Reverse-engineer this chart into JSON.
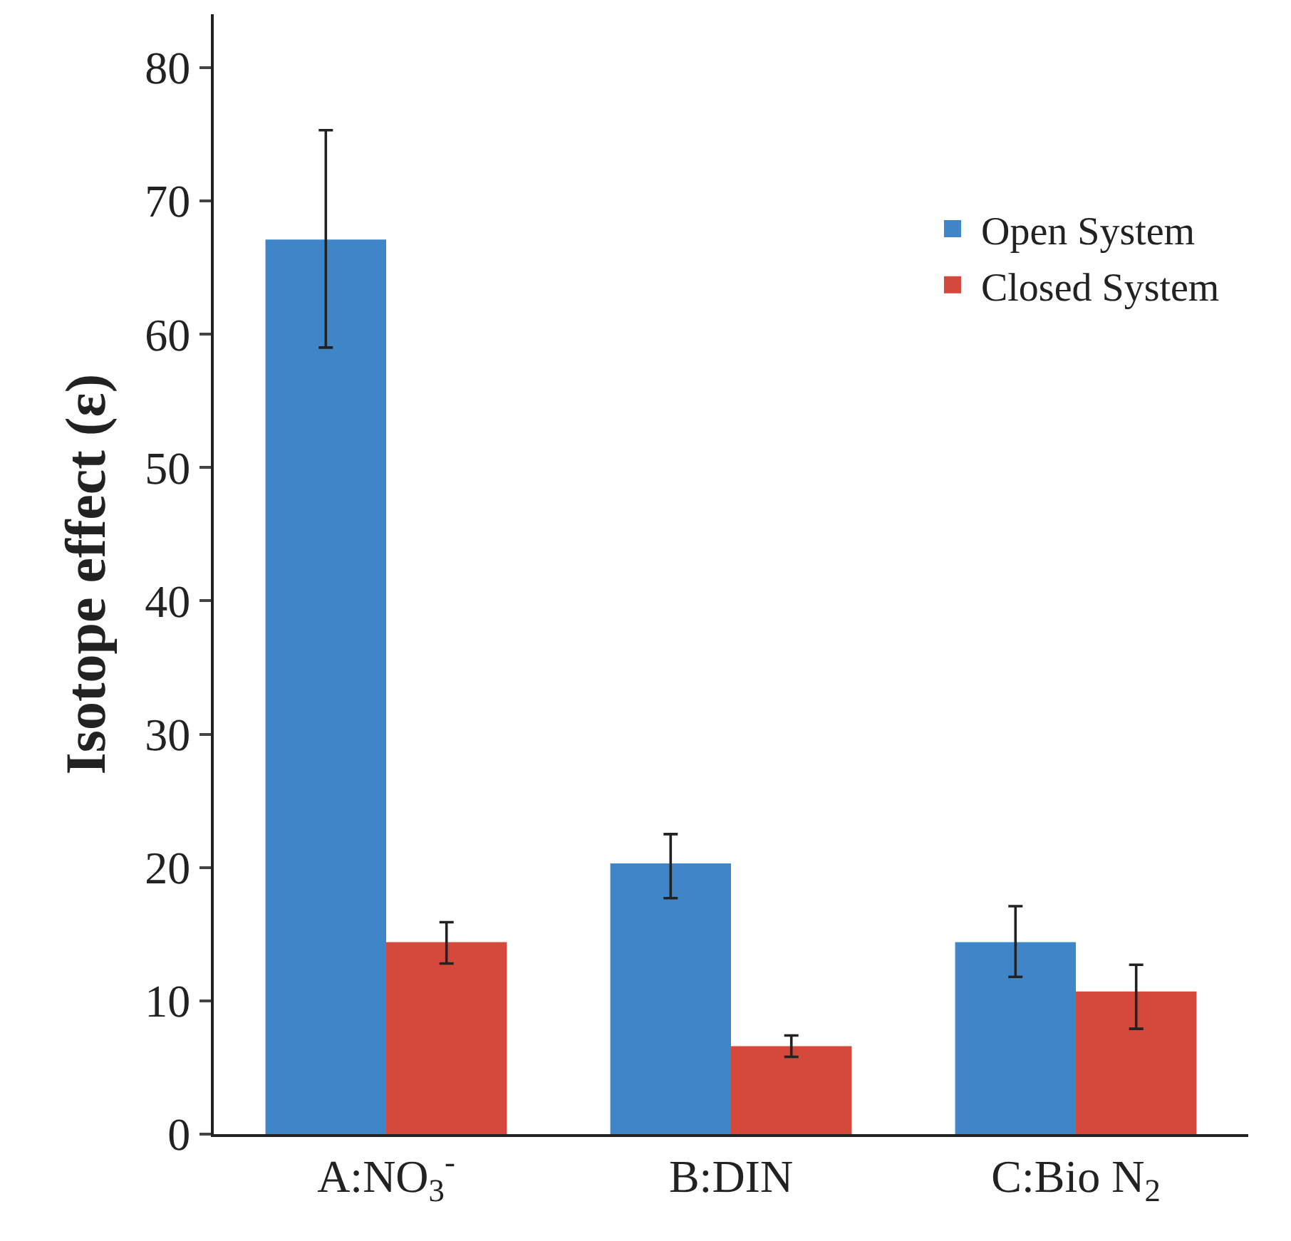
{
  "chart_data": {
    "type": "bar",
    "ylabel": "Isotope effect (ε)",
    "categories": [
      "A:NO$_{3}$$^{-}$",
      "B:DIN",
      "C:Bio N$_{2}$"
    ],
    "series": [
      {
        "name": "Open System",
        "color": "#3f86c8",
        "values": [
          67.1,
          20.3,
          14.4
        ],
        "errors": [
          [
            59.0,
            75.3
          ],
          [
            17.7,
            22.5
          ],
          [
            11.8,
            17.1
          ]
        ]
      },
      {
        "name": "Closed System",
        "color": "#d4493c",
        "values": [
          14.4,
          6.6,
          10.7
        ],
        "errors": [
          [
            12.8,
            15.9
          ],
          [
            5.8,
            7.4
          ],
          [
            7.9,
            12.7
          ]
        ]
      }
    ],
    "ylim": [
      0,
      84
    ],
    "yticks": [
      0,
      10,
      20,
      30,
      40,
      50,
      60,
      70,
      80
    ],
    "legend": "top right"
  }
}
